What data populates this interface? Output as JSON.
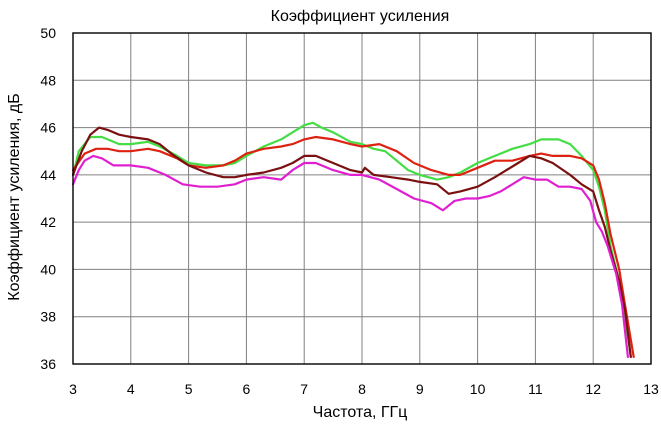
{
  "chart_data": {
    "type": "line",
    "title": "Коэффициент усиления",
    "xlabel": "Частота, ГГц",
    "ylabel": "Коэффициент усиления, дБ",
    "xlim": [
      3,
      13
    ],
    "ylim": [
      36,
      50
    ],
    "xticks": [
      3,
      4,
      5,
      6,
      7,
      8,
      9,
      10,
      11,
      12,
      13
    ],
    "yticks": [
      36,
      38,
      40,
      42,
      44,
      46,
      48,
      50
    ],
    "grid": true,
    "legend": "none",
    "series": [
      {
        "color": "#44dd44",
        "points": [
          [
            3.0,
            44.0
          ],
          [
            3.1,
            45.0
          ],
          [
            3.3,
            45.6
          ],
          [
            3.5,
            45.6
          ],
          [
            3.8,
            45.3
          ],
          [
            4.0,
            45.3
          ],
          [
            4.3,
            45.4
          ],
          [
            4.5,
            45.2
          ],
          [
            4.8,
            44.8
          ],
          [
            5.0,
            44.5
          ],
          [
            5.3,
            44.4
          ],
          [
            5.6,
            44.4
          ],
          [
            5.8,
            44.5
          ],
          [
            6.0,
            44.8
          ],
          [
            6.3,
            45.2
          ],
          [
            6.6,
            45.5
          ],
          [
            6.8,
            45.8
          ],
          [
            7.0,
            46.1
          ],
          [
            7.15,
            46.2
          ],
          [
            7.3,
            46.0
          ],
          [
            7.5,
            45.8
          ],
          [
            7.8,
            45.4
          ],
          [
            8.0,
            45.3
          ],
          [
            8.2,
            45.1
          ],
          [
            8.4,
            45.0
          ],
          [
            8.6,
            44.6
          ],
          [
            8.8,
            44.2
          ],
          [
            9.0,
            44.0
          ],
          [
            9.3,
            43.8
          ],
          [
            9.5,
            43.9
          ],
          [
            9.7,
            44.1
          ],
          [
            10.0,
            44.5
          ],
          [
            10.3,
            44.8
          ],
          [
            10.6,
            45.1
          ],
          [
            10.9,
            45.3
          ],
          [
            11.1,
            45.5
          ],
          [
            11.4,
            45.5
          ],
          [
            11.6,
            45.3
          ],
          [
            11.8,
            44.8
          ],
          [
            12.0,
            44.2
          ],
          [
            12.1,
            43.5
          ],
          [
            12.2,
            42.5
          ],
          [
            12.3,
            41.0
          ],
          [
            12.45,
            39.5
          ],
          [
            12.55,
            38.0
          ],
          [
            12.65,
            36.3
          ]
        ]
      },
      {
        "color": "#dd2211",
        "points": [
          [
            3.0,
            44.2
          ],
          [
            3.2,
            44.9
          ],
          [
            3.4,
            45.1
          ],
          [
            3.6,
            45.1
          ],
          [
            3.8,
            45.0
          ],
          [
            4.0,
            45.0
          ],
          [
            4.3,
            45.1
          ],
          [
            4.5,
            45.0
          ],
          [
            4.8,
            44.7
          ],
          [
            5.0,
            44.4
          ],
          [
            5.3,
            44.3
          ],
          [
            5.6,
            44.4
          ],
          [
            5.8,
            44.6
          ],
          [
            6.0,
            44.9
          ],
          [
            6.3,
            45.1
          ],
          [
            6.6,
            45.2
          ],
          [
            6.8,
            45.3
          ],
          [
            7.0,
            45.5
          ],
          [
            7.2,
            45.6
          ],
          [
            7.5,
            45.5
          ],
          [
            7.8,
            45.3
          ],
          [
            8.0,
            45.2
          ],
          [
            8.3,
            45.3
          ],
          [
            8.6,
            45.0
          ],
          [
            8.9,
            44.5
          ],
          [
            9.2,
            44.2
          ],
          [
            9.5,
            44.0
          ],
          [
            9.7,
            44.0
          ],
          [
            10.0,
            44.3
          ],
          [
            10.3,
            44.6
          ],
          [
            10.6,
            44.6
          ],
          [
            10.9,
            44.8
          ],
          [
            11.1,
            44.9
          ],
          [
            11.3,
            44.8
          ],
          [
            11.6,
            44.8
          ],
          [
            11.8,
            44.7
          ],
          [
            12.0,
            44.4
          ],
          [
            12.1,
            43.8
          ],
          [
            12.2,
            42.8
          ],
          [
            12.3,
            41.5
          ],
          [
            12.45,
            40.0
          ],
          [
            12.55,
            38.5
          ],
          [
            12.7,
            36.3
          ]
        ]
      },
      {
        "color": "#7a1010",
        "points": [
          [
            3.0,
            44.0
          ],
          [
            3.15,
            45.0
          ],
          [
            3.3,
            45.7
          ],
          [
            3.45,
            46.0
          ],
          [
            3.6,
            45.9
          ],
          [
            3.8,
            45.7
          ],
          [
            4.0,
            45.6
          ],
          [
            4.3,
            45.5
          ],
          [
            4.5,
            45.3
          ],
          [
            4.7,
            44.9
          ],
          [
            5.0,
            44.4
          ],
          [
            5.3,
            44.1
          ],
          [
            5.6,
            43.9
          ],
          [
            5.8,
            43.9
          ],
          [
            6.0,
            44.0
          ],
          [
            6.3,
            44.1
          ],
          [
            6.6,
            44.3
          ],
          [
            6.8,
            44.5
          ],
          [
            7.0,
            44.8
          ],
          [
            7.2,
            44.8
          ],
          [
            7.5,
            44.5
          ],
          [
            7.8,
            44.2
          ],
          [
            8.0,
            44.1
          ],
          [
            8.05,
            44.3
          ],
          [
            8.2,
            44.0
          ],
          [
            8.5,
            43.9
          ],
          [
            8.8,
            43.8
          ],
          [
            9.0,
            43.7
          ],
          [
            9.3,
            43.6
          ],
          [
            9.5,
            43.2
          ],
          [
            9.7,
            43.3
          ],
          [
            10.0,
            43.5
          ],
          [
            10.3,
            43.9
          ],
          [
            10.5,
            44.2
          ],
          [
            10.7,
            44.5
          ],
          [
            10.9,
            44.8
          ],
          [
            11.1,
            44.7
          ],
          [
            11.3,
            44.5
          ],
          [
            11.6,
            44.0
          ],
          [
            11.8,
            43.6
          ],
          [
            12.0,
            43.3
          ],
          [
            12.1,
            42.5
          ],
          [
            12.2,
            41.8
          ],
          [
            12.3,
            40.8
          ],
          [
            12.45,
            39.5
          ],
          [
            12.55,
            38.3
          ],
          [
            12.65,
            36.3
          ]
        ]
      },
      {
        "color": "#e020d0",
        "points": [
          [
            3.0,
            43.6
          ],
          [
            3.1,
            44.2
          ],
          [
            3.2,
            44.6
          ],
          [
            3.35,
            44.8
          ],
          [
            3.5,
            44.7
          ],
          [
            3.7,
            44.4
          ],
          [
            4.0,
            44.4
          ],
          [
            4.3,
            44.3
          ],
          [
            4.6,
            44.0
          ],
          [
            4.9,
            43.6
          ],
          [
            5.2,
            43.5
          ],
          [
            5.5,
            43.5
          ],
          [
            5.8,
            43.6
          ],
          [
            6.0,
            43.8
          ],
          [
            6.3,
            43.9
          ],
          [
            6.6,
            43.8
          ],
          [
            6.8,
            44.2
          ],
          [
            7.0,
            44.5
          ],
          [
            7.2,
            44.5
          ],
          [
            7.5,
            44.2
          ],
          [
            7.8,
            44.0
          ],
          [
            8.0,
            44.0
          ],
          [
            8.3,
            43.8
          ],
          [
            8.6,
            43.4
          ],
          [
            8.9,
            43.0
          ],
          [
            9.2,
            42.8
          ],
          [
            9.4,
            42.5
          ],
          [
            9.6,
            42.9
          ],
          [
            9.8,
            43.0
          ],
          [
            10.0,
            43.0
          ],
          [
            10.2,
            43.1
          ],
          [
            10.4,
            43.3
          ],
          [
            10.6,
            43.6
          ],
          [
            10.8,
            43.9
          ],
          [
            11.0,
            43.8
          ],
          [
            11.2,
            43.8
          ],
          [
            11.4,
            43.5
          ],
          [
            11.6,
            43.5
          ],
          [
            11.8,
            43.4
          ],
          [
            11.95,
            42.9
          ],
          [
            12.05,
            42.0
          ],
          [
            12.15,
            41.6
          ],
          [
            12.25,
            41.0
          ],
          [
            12.4,
            39.8
          ],
          [
            12.5,
            38.5
          ],
          [
            12.6,
            36.3
          ]
        ]
      }
    ]
  }
}
